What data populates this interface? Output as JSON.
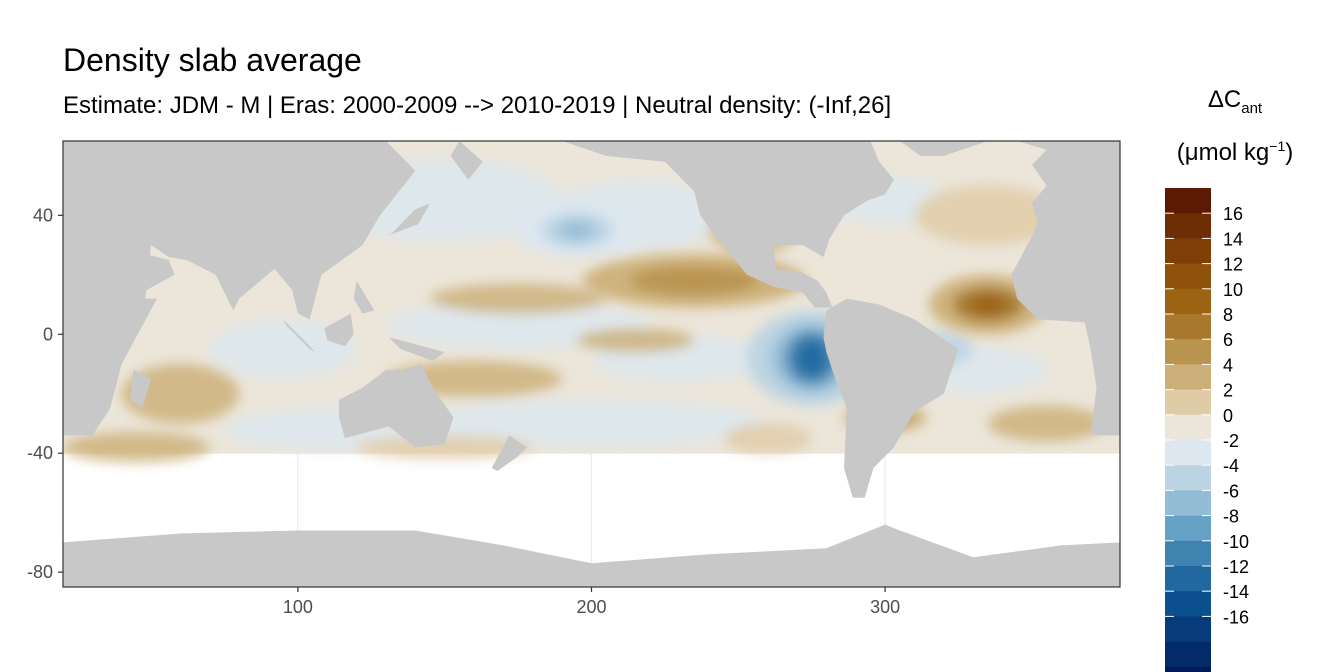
{
  "chart_data": {
    "type": "heatmap",
    "title": "Density slab average",
    "subtitle": "Estimate: JDM - M | Eras: 2000-2009 --> 2010-2019 | Neutral density: (-Inf,26]",
    "xlabel": "",
    "ylabel": "",
    "xlim": [
      20,
      380
    ],
    "ylim": [
      -85,
      65
    ],
    "x_ticks": [
      100,
      200,
      300
    ],
    "y_ticks": [
      40,
      0,
      -40,
      -80
    ],
    "data_extent_lat": [
      -40,
      65
    ],
    "legend": {
      "title_main": "ΔC",
      "title_sub": "ant",
      "unit_prefix": "(μmol kg",
      "unit_sup": "−1",
      "unit_suffix": ")",
      "position": "right",
      "labels": [
        "16",
        "14",
        "12",
        "10",
        "8",
        "6",
        "4",
        "2",
        "0",
        "-2",
        "-4",
        "-6",
        "-8",
        "-10",
        "-12",
        "-14",
        "-16"
      ],
      "colors": [
        "#5c1a04",
        "#6e2e05",
        "#803f06",
        "#8f520a",
        "#9c6313",
        "#a8782c",
        "#b9944f",
        "#cdb079",
        "#e0cba7",
        "#ece6da",
        "#dce7ef",
        "#bbd4e4",
        "#93bdd7",
        "#66a1c6",
        "#3f83b1",
        "#2268a0",
        "#0d508f",
        "#063c7c",
        "#032b6a",
        "#011b5a"
      ]
    },
    "features": [
      {
        "name": "mid-north-pacific",
        "kind": "negative",
        "value": -4,
        "lon": 195,
        "lat": 35
      },
      {
        "name": "peru-upwelling",
        "kind": "negative",
        "value": -12,
        "lon": 275,
        "lat": -8
      },
      {
        "name": "equatorial-pacific-north",
        "kind": "positive",
        "value": 6,
        "lon": 235,
        "lat": 18
      },
      {
        "name": "tropical-north-atlantic",
        "kind": "positive",
        "value": 10,
        "lon": 335,
        "lat": 10
      },
      {
        "name": "south-atlantic-west",
        "kind": "positive",
        "value": 6,
        "lon": 300,
        "lat": -28
      }
    ]
  }
}
